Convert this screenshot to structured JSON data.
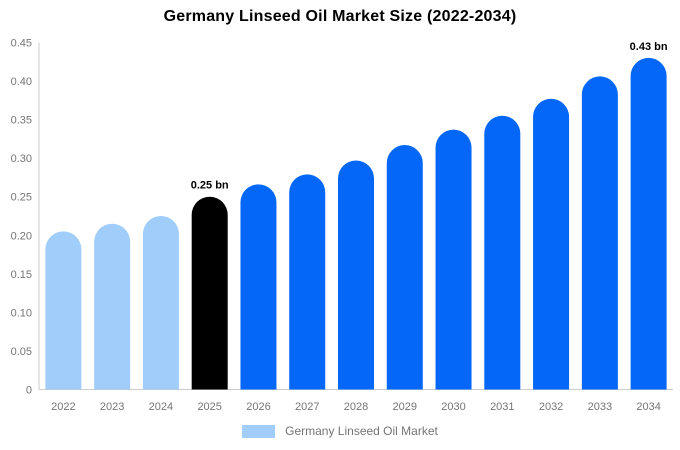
{
  "title": "Germany Linseed Oil Market Size (2022-2034)",
  "legend": {
    "label": "Germany Linseed Oil Market"
  },
  "colors": {
    "historical": "#a0cdfa",
    "base_year": "#000000",
    "forecast": "#0567f7",
    "axis_line": "#cccccc",
    "tick_text": "#757575",
    "annotation_text": "#000000",
    "background": "#ffffff"
  },
  "chart_data": {
    "type": "bar",
    "title": "Germany Linseed Oil Market Size (2022-2034)",
    "categories": [
      "2022",
      "2023",
      "2024",
      "2025",
      "2026",
      "2027",
      "2028",
      "2029",
      "2030",
      "2031",
      "2032",
      "2033",
      "2034"
    ],
    "series": [
      {
        "name": "Germany Linseed Oil Market",
        "values": [
          0.205,
          0.215,
          0.225,
          0.25,
          0.266,
          0.279,
          0.297,
          0.317,
          0.337,
          0.355,
          0.377,
          0.406,
          0.43
        ]
      }
    ],
    "bar_roles": [
      "historical",
      "historical",
      "historical",
      "base_year",
      "forecast",
      "forecast",
      "forecast",
      "forecast",
      "forecast",
      "forecast",
      "forecast",
      "forecast",
      "forecast"
    ],
    "annotations": [
      {
        "category": "2025",
        "text": "0.25 bn"
      },
      {
        "category": "2034",
        "text": "0.43 bn"
      }
    ],
    "xlabel": "",
    "ylabel": "",
    "ylim": [
      0,
      0.45
    ],
    "yticks": [
      "0",
      "0.05",
      "0.10",
      "0.15",
      "0.20",
      "0.25",
      "0.30",
      "0.35",
      "0.40",
      "0.45"
    ],
    "grid": false,
    "legend_position": "bottom-center",
    "unit": "bn"
  }
}
